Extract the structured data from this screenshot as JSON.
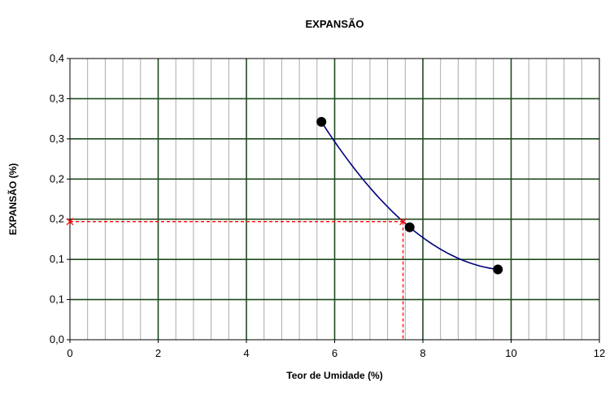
{
  "chart_data": {
    "type": "scatter",
    "title": "EXPANSÃO",
    "xlabel": "Teor de Umidade  (%)",
    "ylabel": "EXPANSÃO (%)",
    "xlim": [
      0,
      12
    ],
    "ylim": [
      0,
      0.4
    ],
    "x_ticks": [
      "0",
      "2",
      "4",
      "6",
      "8",
      "10",
      "12"
    ],
    "y_ticks": [
      "0,0",
      "0,1",
      "0,1",
      "0,2",
      "0,2",
      "0,3",
      "0,3",
      "0,4"
    ],
    "grid": true,
    "series": [
      {
        "points": [
          {
            "x": 5.7,
            "y": 0.31
          },
          {
            "x": 7.7,
            "y": 0.16
          },
          {
            "x": 9.7,
            "y": 0.1
          }
        ],
        "color": "#000080"
      }
    ],
    "reference": {
      "x": 7.55,
      "y": 0.168,
      "color": "#ff0000"
    }
  }
}
